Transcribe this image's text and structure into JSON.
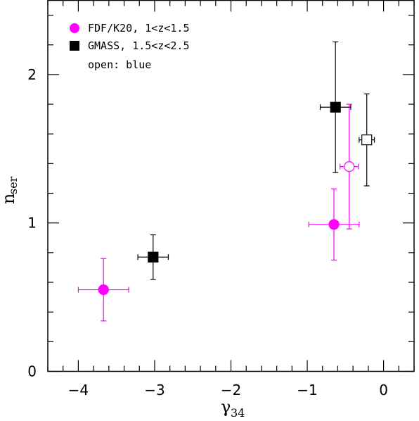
{
  "chart_data": {
    "type": "scatter",
    "title": "",
    "xlabel": {
      "main": "γ",
      "sub": "34"
    },
    "ylabel": {
      "main": "n",
      "sub": "ser"
    },
    "xlim": [
      -4.4,
      0.4
    ],
    "ylim": [
      0,
      2.5
    ],
    "x_ticks": [
      {
        "value": -4,
        "label": "−4"
      },
      {
        "value": -3,
        "label": "−3"
      },
      {
        "value": -2,
        "label": "−2"
      },
      {
        "value": -1,
        "label": "−1"
      },
      {
        "value": 0,
        "label": "0"
      }
    ],
    "y_ticks": [
      {
        "value": 0,
        "label": "0"
      },
      {
        "value": 1,
        "label": "1"
      },
      {
        "value": 2,
        "label": "2"
      }
    ],
    "x_minor_step": 0.2,
    "y_minor_step": 0.2,
    "grid": false,
    "legend_position": "top-left",
    "legend": [
      {
        "text": "FDF/K20, 1<z<1.5",
        "marker": "circle",
        "color": "#ff00ff",
        "filled": true
      },
      {
        "text": "GMASS, 1.5<z<2.5",
        "marker": "square",
        "color": "#000000",
        "filled": true
      },
      {
        "text": "open: blue",
        "marker": "none"
      }
    ],
    "series": [
      {
        "name": "FDF/K20, 1<z<1.5",
        "marker": "circle",
        "color": "#ff00ff",
        "points": [
          {
            "x": -3.67,
            "y": 0.55,
            "xerr": [
              0.33,
              0.33
            ],
            "yerr": [
              0.21,
              0.21
            ],
            "filled": true
          },
          {
            "x": -0.65,
            "y": 0.99,
            "xerr": [
              0.33,
              0.33
            ],
            "yerr": [
              0.24,
              0.24
            ],
            "filled": true
          },
          {
            "x": -0.45,
            "y": 1.38,
            "xerr": [
              0.12,
              0.12
            ],
            "yerr": [
              0.42,
              0.42
            ],
            "filled": false
          }
        ]
      },
      {
        "name": "GMASS, 1.5<z<2.5",
        "marker": "square",
        "color": "#000000",
        "points": [
          {
            "x": -3.02,
            "y": 0.77,
            "xerr": [
              0.2,
              0.2
            ],
            "yerr": [
              0.15,
              0.15
            ],
            "filled": true
          },
          {
            "x": -0.63,
            "y": 1.78,
            "xerr": [
              0.2,
              0.2
            ],
            "yerr": [
              0.44,
              0.44
            ],
            "filled": true
          },
          {
            "x": -0.22,
            "y": 1.56,
            "xerr": [
              0.1,
              0.1
            ],
            "yerr": [
              0.31,
              0.31
            ],
            "filled": false
          }
        ]
      }
    ]
  }
}
